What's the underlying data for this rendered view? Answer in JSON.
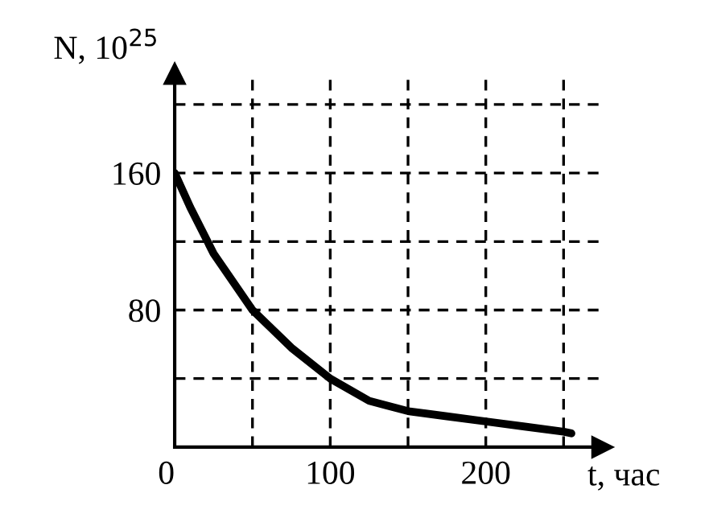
{
  "chart_data": {
    "type": "line",
    "xlabel": "t, час",
    "ylabel": "N, 10$^{25}$",
    "x": [
      0,
      10,
      25,
      50,
      75,
      100,
      125,
      150,
      175,
      200,
      225,
      250,
      255
    ],
    "series": [
      {
        "color": "#000000",
        "values": [
          160,
          140,
          113,
          80,
          58,
          40,
          27,
          21,
          18,
          15,
          12,
          9,
          8
        ]
      }
    ],
    "xlim": [
      0,
      275
    ],
    "ylim": [
      0,
      218
    ],
    "xticks": [
      {
        "value": 0,
        "label": "0"
      },
      {
        "value": 50,
        "label": null
      },
      100,
      {
        "value": 150,
        "label": null
      },
      200,
      {
        "value": 250,
        "label": null
      }
    ],
    "yticks": [
      {
        "value": 40,
        "label": null
      },
      80,
      {
        "value": 120,
        "label": null
      },
      160,
      {
        "value": 200,
        "label": null
      }
    ],
    "grid": true,
    "line_style": "solid",
    "marker": "none"
  }
}
